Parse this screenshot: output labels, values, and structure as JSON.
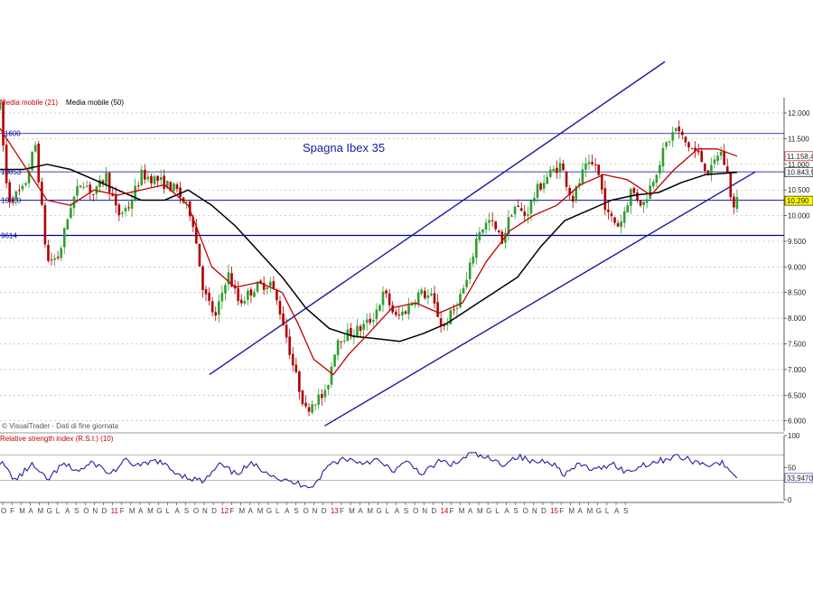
{
  "chart_data": [
    {
      "type": "candlestick",
      "title": "Spagna Ibex 35",
      "legend": [
        {
          "name": "Media mobile (21)",
          "color": "#c00000"
        },
        {
          "name": "Media mobile (50)",
          "color": "#000000"
        }
      ],
      "source_note": "© VisualTrader - Dati di fine giornata",
      "ylim": [
        5800,
        12300
      ],
      "y_ticks": [
        "12.000",
        "11.500",
        "11.000",
        "10.500",
        "10.000",
        "9.500",
        "9.000",
        "8.500",
        "8.000",
        "7.500",
        "7.000",
        "6.500",
        "6.000"
      ],
      "y_tick_values": [
        12000,
        11500,
        11000,
        10500,
        10000,
        9500,
        9000,
        8500,
        8000,
        7500,
        7000,
        6500,
        6000
      ],
      "horizontal_levels": [
        {
          "value": 11600,
          "label": "11600",
          "color": "#0000a0"
        },
        {
          "value": 10853,
          "label": "10853",
          "color": "#0000a0"
        },
        {
          "value": 10300,
          "label": "10300",
          "color": "#0000a0"
        },
        {
          "value": 9614,
          "label": "9614",
          "color": "#0000a0"
        }
      ],
      "price_tags": [
        {
          "value": 11158.4,
          "label": "11.158,4",
          "color": "#c00000",
          "bg": "#ffffff"
        },
        {
          "value": 10843.9,
          "label": "10.843,9",
          "color": "#000000",
          "bg": "#ffffff"
        },
        {
          "value": 10290,
          "label": "10.290",
          "color": "#000000",
          "bg": "#ffff00"
        }
      ],
      "trend_channel": {
        "upper": [
          {
            "x": 0.267,
            "y": 6900
          },
          {
            "x": 0.848,
            "y": 13000
          }
        ],
        "lower": [
          {
            "x": 0.414,
            "y": 5900
          },
          {
            "x": 0.963,
            "y": 10850
          }
        ]
      },
      "path_anchors": [
        {
          "x": 0.0,
          "y": 12100
        },
        {
          "x": 0.01,
          "y": 10300
        },
        {
          "x": 0.03,
          "y": 10500
        },
        {
          "x": 0.045,
          "y": 11400
        },
        {
          "x": 0.06,
          "y": 9100
        },
        {
          "x": 0.075,
          "y": 9200
        },
        {
          "x": 0.09,
          "y": 10200
        },
        {
          "x": 0.105,
          "y": 10700
        },
        {
          "x": 0.12,
          "y": 10400
        },
        {
          "x": 0.135,
          "y": 10800
        },
        {
          "x": 0.15,
          "y": 10000
        },
        {
          "x": 0.165,
          "y": 10200
        },
        {
          "x": 0.18,
          "y": 10800
        },
        {
          "x": 0.2,
          "y": 10700
        },
        {
          "x": 0.225,
          "y": 10500
        },
        {
          "x": 0.245,
          "y": 10000
        },
        {
          "x": 0.26,
          "y": 8500
        },
        {
          "x": 0.275,
          "y": 8000
        },
        {
          "x": 0.29,
          "y": 8900
        },
        {
          "x": 0.305,
          "y": 8300
        },
        {
          "x": 0.325,
          "y": 8600
        },
        {
          "x": 0.345,
          "y": 8700
        },
        {
          "x": 0.36,
          "y": 8000
        },
        {
          "x": 0.375,
          "y": 7000
        },
        {
          "x": 0.39,
          "y": 6200
        },
        {
          "x": 0.4,
          "y": 6400
        },
        {
          "x": 0.415,
          "y": 6500
        },
        {
          "x": 0.43,
          "y": 7600
        },
        {
          "x": 0.445,
          "y": 7700
        },
        {
          "x": 0.46,
          "y": 7800
        },
        {
          "x": 0.475,
          "y": 8000
        },
        {
          "x": 0.49,
          "y": 8500
        },
        {
          "x": 0.505,
          "y": 8000
        },
        {
          "x": 0.52,
          "y": 8200
        },
        {
          "x": 0.535,
          "y": 8500
        },
        {
          "x": 0.55,
          "y": 8400
        },
        {
          "x": 0.565,
          "y": 7800
        },
        {
          "x": 0.58,
          "y": 8200
        },
        {
          "x": 0.595,
          "y": 8700
        },
        {
          "x": 0.61,
          "y": 9700
        },
        {
          "x": 0.625,
          "y": 9900
        },
        {
          "x": 0.64,
          "y": 9500
        },
        {
          "x": 0.655,
          "y": 10200
        },
        {
          "x": 0.67,
          "y": 10000
        },
        {
          "x": 0.685,
          "y": 10500
        },
        {
          "x": 0.7,
          "y": 10800
        },
        {
          "x": 0.715,
          "y": 11000
        },
        {
          "x": 0.73,
          "y": 10300
        },
        {
          "x": 0.745,
          "y": 10900
        },
        {
          "x": 0.76,
          "y": 11000
        },
        {
          "x": 0.775,
          "y": 10000
        },
        {
          "x": 0.79,
          "y": 9800
        },
        {
          "x": 0.805,
          "y": 10500
        },
        {
          "x": 0.82,
          "y": 10200
        },
        {
          "x": 0.835,
          "y": 10800
        },
        {
          "x": 0.85,
          "y": 11400
        },
        {
          "x": 0.862,
          "y": 11700
        },
        {
          "x": 0.875,
          "y": 11400
        },
        {
          "x": 0.89,
          "y": 11200
        },
        {
          "x": 0.905,
          "y": 10800
        },
        {
          "x": 0.918,
          "y": 11300
        },
        {
          "x": 0.928,
          "y": 10800
        },
        {
          "x": 0.935,
          "y": 10100
        },
        {
          "x": 0.94,
          "y": 10290
        }
      ],
      "ma21_anchors": [
        {
          "x": 0.0,
          "y": 11700
        },
        {
          "x": 0.03,
          "y": 11000
        },
        {
          "x": 0.06,
          "y": 10300
        },
        {
          "x": 0.09,
          "y": 10200
        },
        {
          "x": 0.12,
          "y": 10500
        },
        {
          "x": 0.15,
          "y": 10400
        },
        {
          "x": 0.18,
          "y": 10500
        },
        {
          "x": 0.21,
          "y": 10600
        },
        {
          "x": 0.24,
          "y": 10200
        },
        {
          "x": 0.27,
          "y": 9000
        },
        {
          "x": 0.3,
          "y": 8600
        },
        {
          "x": 0.33,
          "y": 8700
        },
        {
          "x": 0.36,
          "y": 8500
        },
        {
          "x": 0.38,
          "y": 7900
        },
        {
          "x": 0.4,
          "y": 7200
        },
        {
          "x": 0.425,
          "y": 6900
        },
        {
          "x": 0.445,
          "y": 7300
        },
        {
          "x": 0.47,
          "y": 7700
        },
        {
          "x": 0.5,
          "y": 8200
        },
        {
          "x": 0.53,
          "y": 8300
        },
        {
          "x": 0.56,
          "y": 8100
        },
        {
          "x": 0.59,
          "y": 8300
        },
        {
          "x": 0.62,
          "y": 9100
        },
        {
          "x": 0.65,
          "y": 9700
        },
        {
          "x": 0.68,
          "y": 10000
        },
        {
          "x": 0.71,
          "y": 10200
        },
        {
          "x": 0.74,
          "y": 10600
        },
        {
          "x": 0.77,
          "y": 10800
        },
        {
          "x": 0.8,
          "y": 10700
        },
        {
          "x": 0.83,
          "y": 10400
        },
        {
          "x": 0.86,
          "y": 10900
        },
        {
          "x": 0.89,
          "y": 11300
        },
        {
          "x": 0.915,
          "y": 11300
        },
        {
          "x": 0.94,
          "y": 11158
        }
      ],
      "ma50_anchors": [
        {
          "x": 0.0,
          "y": 10900
        },
        {
          "x": 0.03,
          "y": 10900
        },
        {
          "x": 0.06,
          "y": 11000
        },
        {
          "x": 0.09,
          "y": 10900
        },
        {
          "x": 0.12,
          "y": 10700
        },
        {
          "x": 0.15,
          "y": 10500
        },
        {
          "x": 0.18,
          "y": 10300
        },
        {
          "x": 0.21,
          "y": 10300
        },
        {
          "x": 0.24,
          "y": 10500
        },
        {
          "x": 0.27,
          "y": 10200
        },
        {
          "x": 0.3,
          "y": 9800
        },
        {
          "x": 0.33,
          "y": 9300
        },
        {
          "x": 0.36,
          "y": 8800
        },
        {
          "x": 0.39,
          "y": 8200
        },
        {
          "x": 0.42,
          "y": 7800
        },
        {
          "x": 0.45,
          "y": 7650
        },
        {
          "x": 0.48,
          "y": 7600
        },
        {
          "x": 0.51,
          "y": 7550
        },
        {
          "x": 0.54,
          "y": 7700
        },
        {
          "x": 0.57,
          "y": 7900
        },
        {
          "x": 0.6,
          "y": 8200
        },
        {
          "x": 0.63,
          "y": 8500
        },
        {
          "x": 0.66,
          "y": 8800
        },
        {
          "x": 0.69,
          "y": 9400
        },
        {
          "x": 0.72,
          "y": 9900
        },
        {
          "x": 0.75,
          "y": 10100
        },
        {
          "x": 0.78,
          "y": 10300
        },
        {
          "x": 0.81,
          "y": 10400
        },
        {
          "x": 0.84,
          "y": 10450
        },
        {
          "x": 0.87,
          "y": 10650
        },
        {
          "x": 0.9,
          "y": 10800
        },
        {
          "x": 0.94,
          "y": 10844
        }
      ]
    },
    {
      "type": "line",
      "title": "Relative strength index (R.S.I.) (10)",
      "ylim": [
        0,
        100
      ],
      "y_ticks": [
        "100",
        "50",
        "0"
      ],
      "y_tick_values": [
        100,
        50,
        0
      ],
      "reference_levels": [
        70,
        30
      ],
      "current_value_label": "33,9470",
      "current_value": 33.947,
      "line_color": "#2020a0",
      "rsi_anchors": [
        {
          "x": 0.0,
          "y": 60
        },
        {
          "x": 0.02,
          "y": 30
        },
        {
          "x": 0.04,
          "y": 55
        },
        {
          "x": 0.06,
          "y": 30
        },
        {
          "x": 0.08,
          "y": 55
        },
        {
          "x": 0.1,
          "y": 45
        },
        {
          "x": 0.12,
          "y": 58
        },
        {
          "x": 0.14,
          "y": 40
        },
        {
          "x": 0.16,
          "y": 60
        },
        {
          "x": 0.18,
          "y": 52
        },
        {
          "x": 0.2,
          "y": 62
        },
        {
          "x": 0.22,
          "y": 45
        },
        {
          "x": 0.24,
          "y": 35
        },
        {
          "x": 0.26,
          "y": 28
        },
        {
          "x": 0.28,
          "y": 55
        },
        {
          "x": 0.3,
          "y": 40
        },
        {
          "x": 0.32,
          "y": 55
        },
        {
          "x": 0.34,
          "y": 45
        },
        {
          "x": 0.36,
          "y": 30
        },
        {
          "x": 0.38,
          "y": 25
        },
        {
          "x": 0.4,
          "y": 22
        },
        {
          "x": 0.42,
          "y": 55
        },
        {
          "x": 0.44,
          "y": 65
        },
        {
          "x": 0.46,
          "y": 58
        },
        {
          "x": 0.48,
          "y": 62
        },
        {
          "x": 0.5,
          "y": 45
        },
        {
          "x": 0.52,
          "y": 58
        },
        {
          "x": 0.54,
          "y": 40
        },
        {
          "x": 0.56,
          "y": 60
        },
        {
          "x": 0.58,
          "y": 55
        },
        {
          "x": 0.6,
          "y": 72
        },
        {
          "x": 0.62,
          "y": 65
        },
        {
          "x": 0.64,
          "y": 55
        },
        {
          "x": 0.66,
          "y": 68
        },
        {
          "x": 0.68,
          "y": 58
        },
        {
          "x": 0.7,
          "y": 62
        },
        {
          "x": 0.72,
          "y": 40
        },
        {
          "x": 0.74,
          "y": 55
        },
        {
          "x": 0.76,
          "y": 45
        },
        {
          "x": 0.78,
          "y": 58
        },
        {
          "x": 0.8,
          "y": 42
        },
        {
          "x": 0.82,
          "y": 55
        },
        {
          "x": 0.84,
          "y": 60
        },
        {
          "x": 0.86,
          "y": 68
        },
        {
          "x": 0.88,
          "y": 62
        },
        {
          "x": 0.9,
          "y": 55
        },
        {
          "x": 0.92,
          "y": 58
        },
        {
          "x": 0.935,
          "y": 40
        },
        {
          "x": 0.94,
          "y": 34
        }
      ]
    }
  ],
  "time_axis": {
    "labels": [
      {
        "text": "O",
        "x": 0.0,
        "year": false
      },
      {
        "text": "F",
        "x": 0.017,
        "year": false
      },
      {
        "text": "M",
        "x": 0.034,
        "year": false
      },
      {
        "text": "A",
        "x": 0.051,
        "year": false
      },
      {
        "text": "M",
        "x": 0.068,
        "year": false
      },
      {
        "text": "G",
        "x": 0.085,
        "year": false
      },
      {
        "text": "L",
        "x": 0.102,
        "year": false
      },
      {
        "text": "A",
        "x": 0.119,
        "year": false
      },
      {
        "text": "S",
        "x": 0.136,
        "year": false
      },
      {
        "text": "O",
        "x": 0.153,
        "year": false
      },
      {
        "text": "N",
        "x": 0.17,
        "year": false
      },
      {
        "text": "D",
        "x": 0.187,
        "year": false
      },
      {
        "text": "11",
        "x": 0.204,
        "year": true
      },
      {
        "text": "F",
        "x": 0.221,
        "year": false
      },
      {
        "text": "M",
        "x": 0.238,
        "year": false
      },
      {
        "text": "A",
        "x": 0.255,
        "year": false
      },
      {
        "text": "M",
        "x": 0.272,
        "year": false
      },
      {
        "text": "G",
        "x": 0.289,
        "year": false
      },
      {
        "text": "L",
        "x": 0.306,
        "year": false
      },
      {
        "text": "A",
        "x": 0.323,
        "year": false
      },
      {
        "text": "S",
        "x": 0.34,
        "year": false
      },
      {
        "text": "O",
        "x": 0.357,
        "year": false
      },
      {
        "text": "N",
        "x": 0.374,
        "year": false
      },
      {
        "text": "D",
        "x": 0.391,
        "year": false
      },
      {
        "text": "12",
        "x": 0.408,
        "year": true
      },
      {
        "text": "F",
        "x": 0.425,
        "year": false
      },
      {
        "text": "M",
        "x": 0.442,
        "year": false
      },
      {
        "text": "A",
        "x": 0.459,
        "year": false
      },
      {
        "text": "M",
        "x": 0.476,
        "year": false
      },
      {
        "text": "G",
        "x": 0.493,
        "year": false
      },
      {
        "text": "L",
        "x": 0.51,
        "year": false
      },
      {
        "text": "A",
        "x": 0.527,
        "year": false
      },
      {
        "text": "S",
        "x": 0.544,
        "year": false
      },
      {
        "text": "O",
        "x": 0.561,
        "year": false
      },
      {
        "text": "N",
        "x": 0.578,
        "year": false
      },
      {
        "text": "D",
        "x": 0.595,
        "year": false
      },
      {
        "text": "13",
        "x": 0.612,
        "year": true
      },
      {
        "text": "F",
        "x": 0.629,
        "year": false
      },
      {
        "text": "M",
        "x": 0.646,
        "year": false
      },
      {
        "text": "A",
        "x": 0.663,
        "year": false
      },
      {
        "text": "M",
        "x": 0.68,
        "year": false
      },
      {
        "text": "G",
        "x": 0.697,
        "year": false
      },
      {
        "text": "L",
        "x": 0.714,
        "year": false
      },
      {
        "text": "A",
        "x": 0.731,
        "year": false
      },
      {
        "text": "S",
        "x": 0.748,
        "year": false
      },
      {
        "text": "O",
        "x": 0.765,
        "year": false
      },
      {
        "text": "N",
        "x": 0.782,
        "year": false
      },
      {
        "text": "D",
        "x": 0.799,
        "year": false
      },
      {
        "text": "14",
        "x": 0.816,
        "year": true
      },
      {
        "text": "F",
        "x": 0.833,
        "year": false
      },
      {
        "text": "M",
        "x": 0.85,
        "year": false
      },
      {
        "text": "A",
        "x": 0.867,
        "year": false
      },
      {
        "text": "M",
        "x": 0.884,
        "year": false
      },
      {
        "text": "G",
        "x": 0.901,
        "year": false
      },
      {
        "text": "L",
        "x": 0.918,
        "year": false
      },
      {
        "text": "A",
        "x": 0.935,
        "year": false
      },
      {
        "text": "S",
        "x": 0.952,
        "year": false
      },
      {
        "text": "O",
        "x": 0.969,
        "year": false
      },
      {
        "text": "N",
        "x": 0.986,
        "year": false
      },
      {
        "text": "D",
        "x": 1.003,
        "year": false
      },
      {
        "text": "15",
        "x": 1.02,
        "year": true
      },
      {
        "text": "F",
        "x": 1.037,
        "year": false
      },
      {
        "text": "M",
        "x": 1.054,
        "year": false
      },
      {
        "text": "A",
        "x": 1.071,
        "year": false
      },
      {
        "text": "M",
        "x": 1.088,
        "year": false
      },
      {
        "text": "G",
        "x": 1.105,
        "year": false
      },
      {
        "text": "L",
        "x": 1.122,
        "year": false
      },
      {
        "text": "A",
        "x": 1.139,
        "year": false
      },
      {
        "text": "S",
        "x": 1.156,
        "year": false
      }
    ]
  },
  "colors": {
    "up_candle": "#2e9e2e",
    "down_candle": "#b00000",
    "channel": "#1a1aa0",
    "grid": "#b8b8b8"
  }
}
